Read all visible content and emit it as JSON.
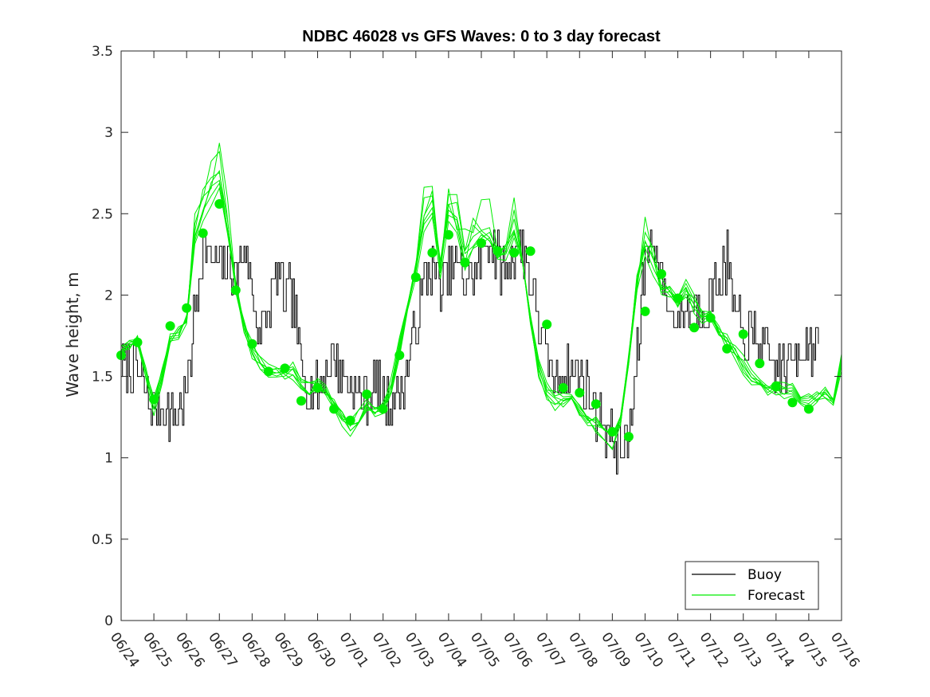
{
  "chart_data": {
    "type": "line",
    "title": "NDBC 46028 vs GFS Waves: 0 to 3 day forecast",
    "xlabel": "",
    "ylabel": "Wave height, m",
    "ylim": [
      0,
      3.5
    ],
    "yticks": [
      "0",
      "0.5",
      "1",
      "1.5",
      "2",
      "2.5",
      "3",
      "3.5"
    ],
    "xticks": [
      "06/24",
      "06/25",
      "06/26",
      "06/27",
      "06/28",
      "06/29",
      "06/30",
      "07/01",
      "07/02",
      "07/03",
      "07/04",
      "07/05",
      "07/06",
      "07/07",
      "07/08",
      "07/09",
      "07/10",
      "07/11",
      "07/12",
      "07/13",
      "07/14",
      "07/15",
      "07/16"
    ],
    "x_unit": "days since 06/24 00:00",
    "grid": false,
    "legend_position": "bottom-right",
    "colors": {
      "buoy": "#000000",
      "forecast": "#00ee00",
      "marker": "#00ee00"
    },
    "legend": [
      {
        "label": "Buoy",
        "color": "#000000"
      },
      {
        "label": "Forecast",
        "color": "#00ee00"
      }
    ],
    "buoy_anchor_x": [
      0,
      0.25,
      0.5,
      0.75,
      1,
      1.25,
      1.5,
      1.75,
      2,
      2.25,
      2.5,
      2.75,
      3,
      3.25,
      3.5,
      3.75,
      4,
      4.25,
      4.5,
      4.75,
      5,
      5.25,
      5.5,
      5.75,
      6,
      6.25,
      6.5,
      6.75,
      7,
      7.25,
      7.5,
      7.75,
      8,
      8.25,
      8.5,
      8.75,
      9,
      9.25,
      9.5,
      9.75,
      10,
      10.25,
      10.5,
      10.75,
      11,
      11.25,
      11.5,
      11.75,
      12,
      12.25,
      12.5,
      12.75,
      13,
      13.25,
      13.5,
      13.75,
      14,
      14.25,
      14.5,
      14.75,
      15,
      15.25,
      15.5,
      15.75,
      16,
      16.25,
      16.5,
      16.75,
      17,
      17.25,
      17.5,
      17.75,
      18,
      18.25,
      18.5,
      18.75,
      19,
      19.25,
      19.5,
      19.75,
      20,
      20.25,
      20.5,
      20.75,
      21,
      21.3
    ],
    "buoy_anchor_y": [
      1.6,
      1.55,
      1.55,
      1.4,
      1.3,
      1.28,
      1.28,
      1.3,
      1.4,
      1.9,
      2.3,
      2.2,
      2.2,
      2.2,
      2.1,
      2.3,
      2.0,
      1.75,
      1.9,
      2.15,
      2.0,
      2.0,
      1.55,
      1.4,
      1.4,
      1.55,
      1.6,
      1.5,
      1.45,
      1.4,
      1.4,
      1.45,
      1.35,
      1.35,
      1.4,
      1.55,
      1.8,
      2.1,
      2.2,
      2.05,
      2.1,
      2.2,
      2.1,
      2.15,
      2.2,
      2.4,
      2.2,
      2.15,
      2.3,
      2.3,
      2.1,
      1.85,
      1.6,
      1.45,
      1.5,
      1.55,
      1.5,
      1.4,
      1.3,
      1.2,
      1.1,
      1.05,
      1.1,
      1.6,
      2.25,
      2.35,
      2.1,
      1.9,
      1.85,
      1.9,
      1.95,
      1.9,
      2.0,
      2.1,
      2.2,
      1.85,
      1.75,
      1.75,
      1.7,
      1.6,
      1.55,
      1.55,
      1.6,
      1.7,
      1.7,
      1.7
    ],
    "forecast_base_x": [
      0,
      0.25,
      0.5,
      0.75,
      1,
      1.25,
      1.5,
      1.75,
      2,
      2.25,
      2.5,
      2.75,
      3,
      3.25,
      3.5,
      3.75,
      4,
      4.25,
      4.5,
      4.75,
      5,
      5.25,
      5.5,
      5.75,
      6,
      6.25,
      6.5,
      6.75,
      7,
      7.25,
      7.5,
      7.75,
      8,
      8.25,
      8.5,
      8.75,
      9,
      9.25,
      9.5,
      9.75,
      10,
      10.25,
      10.5,
      10.75,
      11,
      11.25,
      11.5,
      11.75,
      12,
      12.25,
      12.5,
      12.75,
      13,
      13.25,
      13.5,
      13.75,
      14,
      14.25,
      14.5,
      14.75,
      15,
      15.25,
      15.5,
      15.75,
      16,
      16.25,
      16.5,
      16.75,
      17,
      17.25,
      17.5,
      17.75,
      18,
      18.25,
      18.5,
      18.75,
      19,
      19.25,
      19.5,
      19.75,
      20,
      20.25,
      20.5,
      20.75,
      21,
      21.25,
      21.5,
      21.75,
      22
    ],
    "forecast_base_y": [
      1.6,
      1.65,
      1.72,
      1.55,
      1.38,
      1.55,
      1.78,
      1.8,
      1.85,
      2.3,
      2.45,
      2.55,
      2.65,
      2.35,
      2.05,
      1.85,
      1.72,
      1.65,
      1.58,
      1.55,
      1.52,
      1.5,
      1.42,
      1.36,
      1.4,
      1.38,
      1.32,
      1.28,
      1.24,
      1.3,
      1.38,
      1.32,
      1.3,
      1.4,
      1.62,
      1.85,
      2.1,
      2.4,
      2.5,
      2.2,
      2.55,
      2.5,
      2.25,
      2.35,
      2.35,
      2.3,
      2.2,
      2.2,
      2.35,
      2.2,
      1.85,
      1.6,
      1.45,
      1.42,
      1.4,
      1.38,
      1.3,
      1.2,
      1.15,
      1.1,
      1.05,
      1.2,
      1.6,
      2.1,
      2.35,
      2.25,
      2.1,
      2.05,
      1.95,
      2.0,
      1.9,
      1.8,
      1.8,
      1.75,
      1.72,
      1.68,
      1.62,
      1.55,
      1.5,
      1.45,
      1.42,
      1.38,
      1.34,
      1.3,
      1.3,
      1.35,
      1.4,
      1.38,
      1.65
    ],
    "forecast_runs": 7,
    "forecast_points_x": [
      0,
      0.5,
      1,
      1.5,
      2,
      2.5,
      3,
      3.5,
      4,
      4.5,
      5,
      5.5,
      6,
      6.5,
      7,
      7.5,
      8,
      8.5,
      9,
      9.5,
      10,
      10.5,
      11,
      11.5,
      12,
      12.5,
      13,
      13.5,
      14,
      14.5,
      15,
      15.5,
      16,
      16.5,
      17,
      17.5,
      18,
      18.5,
      19,
      19.5,
      20,
      20.5,
      21
    ],
    "forecast_points_y": [
      1.63,
      1.71,
      1.36,
      1.81,
      1.92,
      2.38,
      2.56,
      2.03,
      1.7,
      1.53,
      1.55,
      1.35,
      1.43,
      1.3,
      1.23,
      1.39,
      1.3,
      1.63,
      2.11,
      2.26,
      2.37,
      2.2,
      2.32,
      2.27,
      2.26,
      2.27,
      1.82,
      1.43,
      1.4,
      1.33,
      1.16,
      1.13,
      1.9,
      2.13,
      1.98,
      1.8,
      1.86,
      1.67,
      1.76,
      1.58,
      1.44,
      1.34,
      1.3
    ]
  }
}
